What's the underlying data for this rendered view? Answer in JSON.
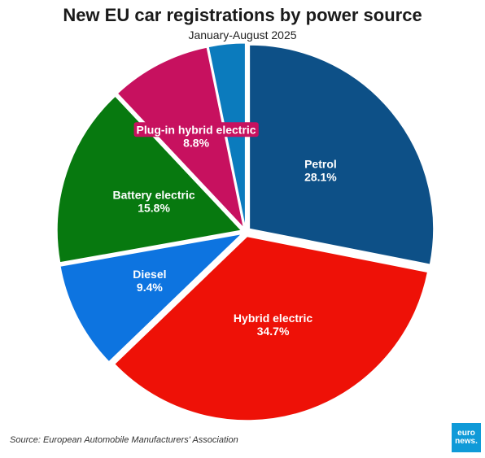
{
  "chart_data": {
    "type": "pie",
    "title": "New EU car registrations by power source",
    "subtitle": "January-August 2025",
    "slices": [
      {
        "name": "Petrol",
        "value": 28.1,
        "value_label": "28.1%",
        "color": "#0d5087"
      },
      {
        "name": "Hybrid electric",
        "value": 34.7,
        "value_label": "34.7%",
        "color": "#ee1107"
      },
      {
        "name": "Diesel",
        "value": 9.4,
        "value_label": "9.4%",
        "color": "#0d74e0"
      },
      {
        "name": "Battery electric",
        "value": 15.8,
        "value_label": "15.8%",
        "color": "#07790f"
      },
      {
        "name": "Plug-in hybrid electric",
        "value": 8.8,
        "value_label": "8.8%",
        "color": "#c7115f"
      },
      {
        "name": "",
        "value": 3.2,
        "value_label": "",
        "color": "#0b7bbd"
      }
    ],
    "start_angle_deg": 0,
    "direction": "clockwise"
  },
  "footer": {
    "source": "Source: European Automobile Manufacturers' Association"
  },
  "logo": {
    "line1": "euro",
    "line2": "news."
  }
}
